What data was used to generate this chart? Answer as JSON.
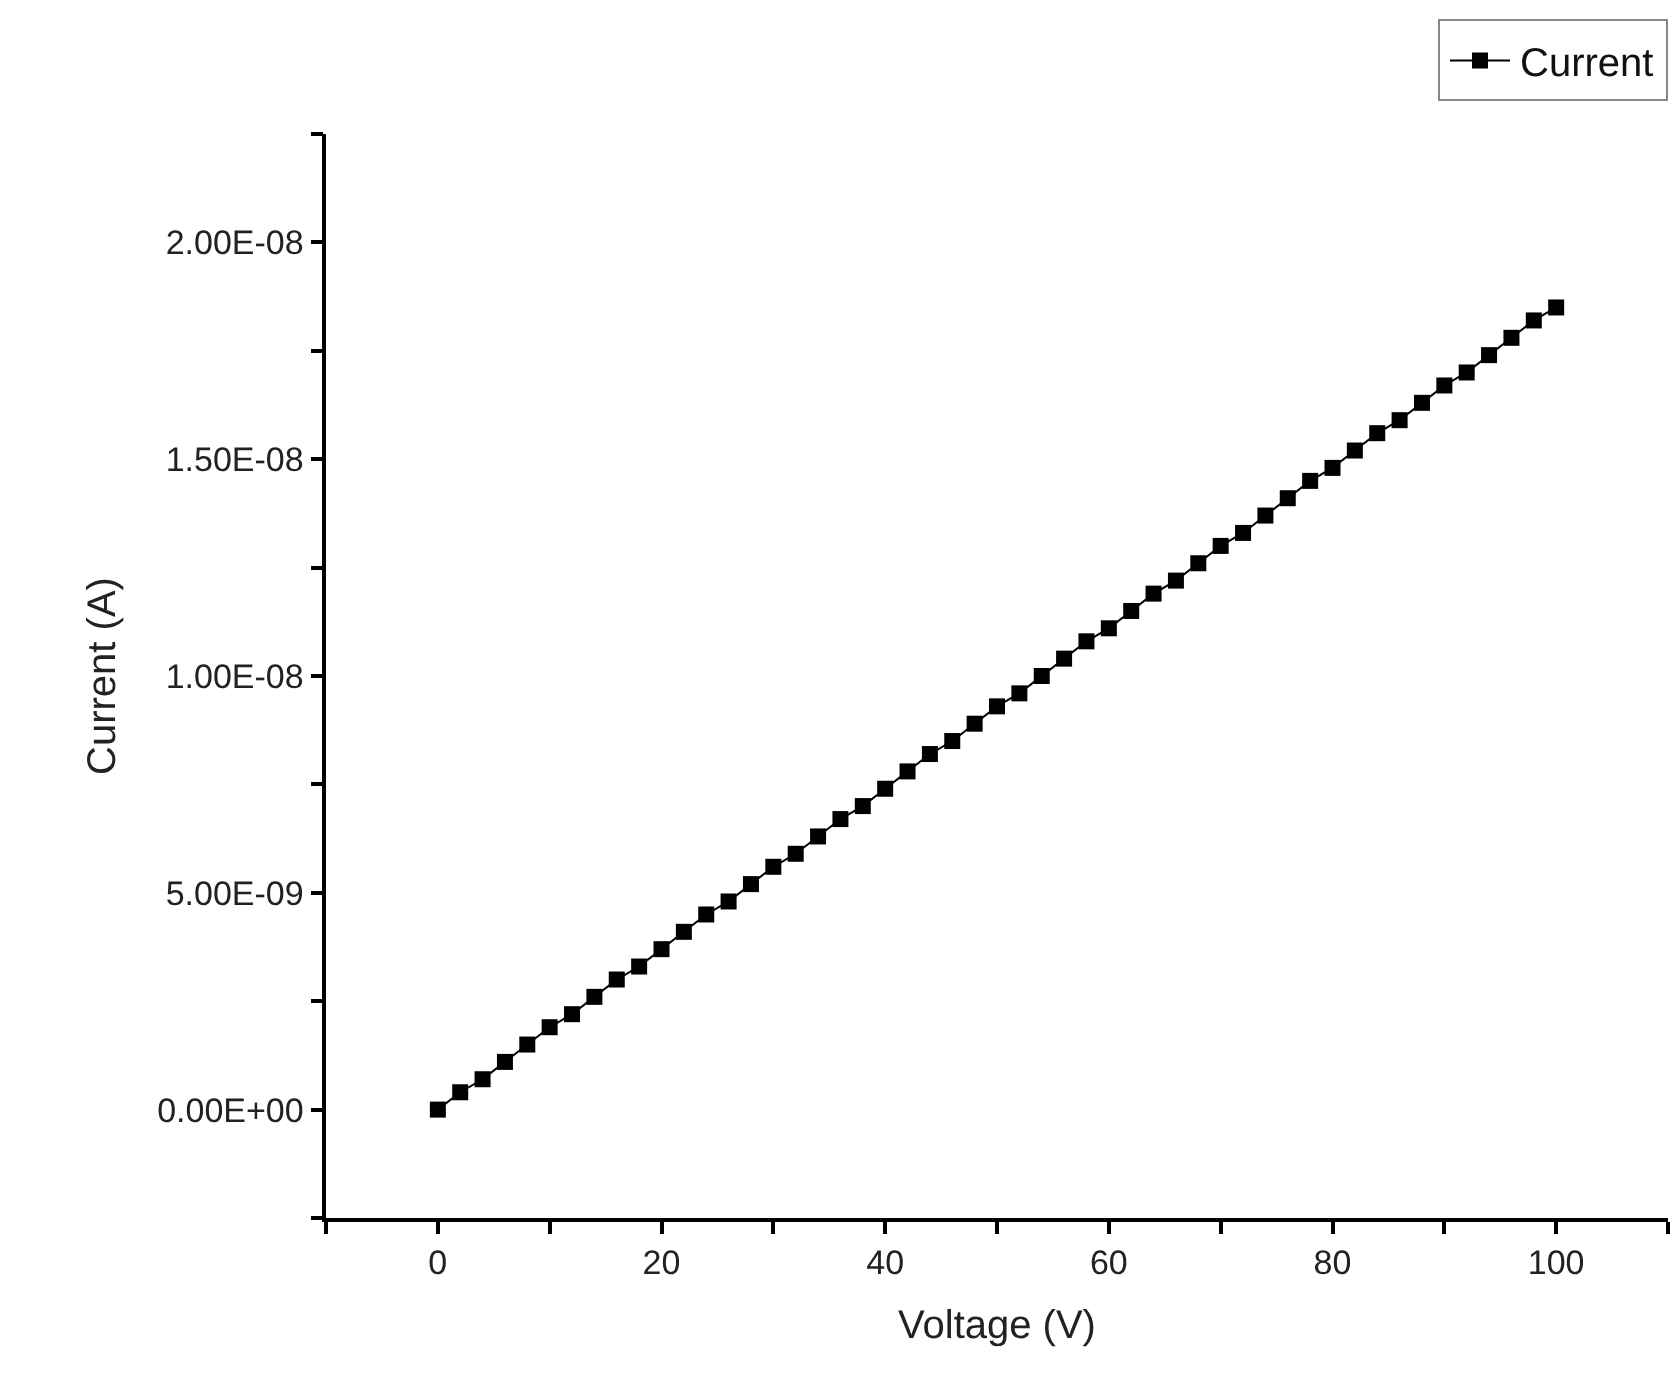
{
  "chart_data": {
    "type": "line",
    "xlabel": "Voltage (V)",
    "ylabel": "Current (A)",
    "x": [
      0,
      2,
      4,
      6,
      8,
      10,
      12,
      14,
      16,
      18,
      20,
      22,
      24,
      26,
      28,
      30,
      32,
      34,
      36,
      38,
      40,
      42,
      44,
      46,
      48,
      50,
      52,
      54,
      56,
      58,
      60,
      62,
      64,
      66,
      68,
      70,
      72,
      74,
      76,
      78,
      80,
      82,
      84,
      86,
      88,
      90,
      92,
      94,
      96,
      98,
      100
    ],
    "series": [
      {
        "name": "Current",
        "color": "#000000",
        "values": [
          0,
          4e-10,
          7e-10,
          1.1e-09,
          1.5e-09,
          1.9e-09,
          2.2e-09,
          2.6e-09,
          3e-09,
          3.3e-09,
          3.7e-09,
          4.1e-09,
          4.5e-09,
          4.8e-09,
          5.2e-09,
          5.6e-09,
          5.9e-09,
          6.3e-09,
          6.7e-09,
          7e-09,
          7.4e-09,
          7.8e-09,
          8.2e-09,
          8.5e-09,
          8.9e-09,
          9.3e-09,
          9.6e-09,
          1e-08,
          1.04e-08,
          1.08e-08,
          1.11e-08,
          1.15e-08,
          1.19e-08,
          1.22e-08,
          1.26e-08,
          1.3e-08,
          1.33e-08,
          1.37e-08,
          1.41e-08,
          1.45e-08,
          1.48e-08,
          1.52e-08,
          1.56e-08,
          1.59e-08,
          1.63e-08,
          1.67e-08,
          1.7e-08,
          1.74e-08,
          1.78e-08,
          1.82e-08,
          1.85e-08
        ]
      }
    ],
    "xlim": [
      -10,
      110
    ],
    "xticks": [
      {
        "value": -10,
        "label": null
      },
      0,
      {
        "value": 10,
        "label": null
      },
      20,
      {
        "value": 30,
        "label": null
      },
      40,
      {
        "value": 50,
        "label": null
      },
      60,
      {
        "value": 70,
        "label": null
      },
      80,
      {
        "value": 90,
        "label": null
      },
      100,
      {
        "value": 110,
        "label": null
      }
    ],
    "ylim": [
      -2.5e-09,
      2.25e-08
    ],
    "yticks": [
      {
        "value": -2.5e-09,
        "label": null
      },
      {
        "value": 0,
        "label": "0.00E+00"
      },
      {
        "value": 2.5e-09,
        "label": null
      },
      {
        "value": 5e-09,
        "label": "5.00E-09"
      },
      {
        "value": 7.5e-09,
        "label": null
      },
      {
        "value": 1e-08,
        "label": "1.00E-08"
      },
      {
        "value": 1.25e-08,
        "label": null
      },
      {
        "value": 1.5e-08,
        "label": "1.50E-08"
      },
      {
        "value": 1.75e-08,
        "label": null
      },
      {
        "value": 2e-08,
        "label": "2.00E-08"
      },
      {
        "value": 2.25e-08,
        "label": null
      }
    ],
    "marker": "square",
    "line_style": "solid",
    "legend": "top right"
  }
}
